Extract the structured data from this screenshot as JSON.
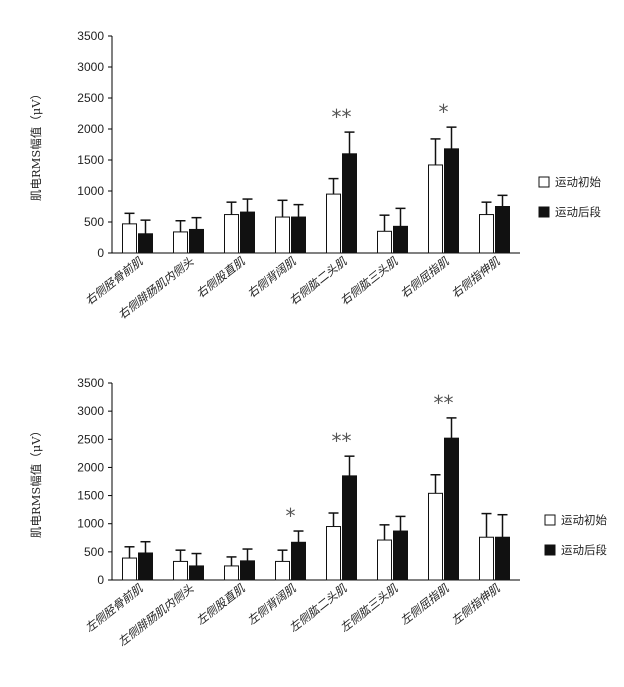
{
  "chart_data": [
    {
      "type": "bar",
      "ylabel": "肌电RMS幅值（μV）",
      "ylim": [
        0,
        3500
      ],
      "yticks": [
        0,
        500,
        1000,
        1500,
        2000,
        2500,
        3000,
        3500
      ],
      "categories": [
        "右侧胫骨前肌",
        "右侧腓肠肌内侧头",
        "右侧股直肌",
        "右侧背阔肌",
        "右侧肱二头肌",
        "右侧肱三头肌",
        "右侧屈指肌",
        "右侧指伸肌"
      ],
      "series": [
        {
          "name": "运动初始",
          "color": "#ffffff",
          "values": [
            470,
            340,
            620,
            580,
            950,
            350,
            1420,
            620
          ],
          "errors": [
            170,
            180,
            200,
            270,
            250,
            260,
            420,
            200
          ]
        },
        {
          "name": "运动后段",
          "color": "#111111",
          "values": [
            310,
            380,
            660,
            580,
            1600,
            430,
            1680,
            750
          ],
          "errors": [
            220,
            190,
            210,
            200,
            350,
            290,
            350,
            180
          ]
        }
      ],
      "annotations": [
        {
          "category": "右侧肱二头肌",
          "text": "**"
        },
        {
          "category": "右侧屈指肌",
          "text": "*"
        }
      ],
      "legend": [
        "运动初始",
        "运动后段"
      ],
      "legend_position": "right"
    },
    {
      "type": "bar",
      "ylabel": "肌电RMS幅值（μV）",
      "ylim": [
        0,
        3500
      ],
      "yticks": [
        0,
        500,
        1000,
        1500,
        2000,
        2500,
        3000,
        3500
      ],
      "categories": [
        "左侧胫骨前肌",
        "左侧腓肠肌内侧头",
        "左侧股直肌",
        "左侧背阔肌",
        "左侧肱二头肌",
        "左侧肱三头肌",
        "左侧屈指肌",
        "左侧指伸肌"
      ],
      "series": [
        {
          "name": "运动初始",
          "color": "#ffffff",
          "values": [
            390,
            330,
            250,
            330,
            950,
            710,
            1540,
            760
          ],
          "errors": [
            200,
            200,
            160,
            200,
            240,
            270,
            330,
            420
          ]
        },
        {
          "name": "运动后段",
          "color": "#111111",
          "values": [
            480,
            250,
            340,
            670,
            1850,
            870,
            2520,
            760
          ],
          "errors": [
            200,
            220,
            210,
            200,
            350,
            260,
            360,
            400
          ]
        }
      ],
      "annotations": [
        {
          "category": "左侧背阔肌",
          "text": "*"
        },
        {
          "category": "左侧肱二头肌",
          "text": "**"
        },
        {
          "category": "左侧屈指肌",
          "text": "**"
        }
      ],
      "legend": [
        "运动初始",
        "运动后段"
      ],
      "legend_position": "right"
    }
  ]
}
